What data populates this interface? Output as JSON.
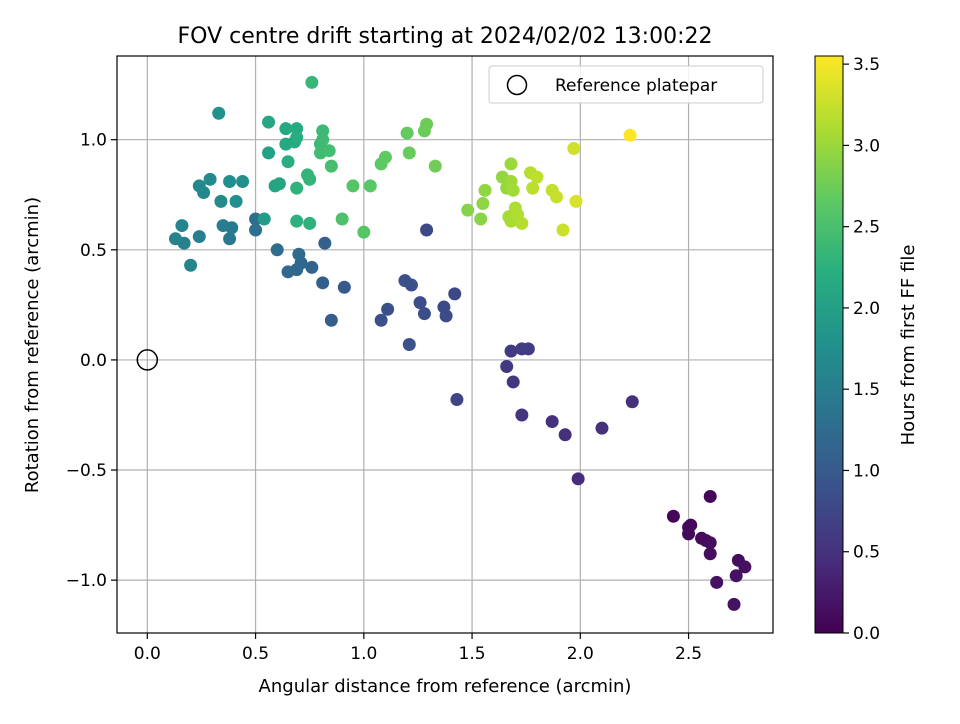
{
  "chart_data": {
    "type": "scatter",
    "title": "FOV centre drift starting at 2024/02/02 13:00:22",
    "xlabel": "Angular distance from reference (arcmin)",
    "ylabel": "Rotation from reference (arcmin)",
    "xlim": [
      -0.14,
      2.89
    ],
    "ylim": [
      -1.24,
      1.38
    ],
    "x_ticks": [
      0.0,
      0.5,
      1.0,
      1.5,
      2.0,
      2.5
    ],
    "x_tick_labels": [
      "0.0",
      "0.5",
      "1.0",
      "1.5",
      "2.0",
      "2.5"
    ],
    "y_ticks": [
      -1.0,
      -0.5,
      0.0,
      0.5,
      1.0
    ],
    "y_tick_labels": [
      "−1.0",
      "−0.5",
      "0.0",
      "0.5",
      "1.0"
    ],
    "grid": true,
    "legend": {
      "placement": "top-right",
      "entries": [
        {
          "label": "Reference platepar",
          "marker": "hollow-circle"
        }
      ]
    },
    "reference_point": {
      "name": "Reference platepar",
      "x": 0.0,
      "y": 0.0
    },
    "colorbar": {
      "label": "Hours from first FF file",
      "colormap": "viridis",
      "range": [
        0.0,
        3.55
      ],
      "ticks": [
        0.0,
        0.5,
        1.0,
        1.5,
        2.0,
        2.5,
        3.0,
        3.5
      ],
      "tick_labels": [
        "0.0",
        "0.5",
        "1.0",
        "1.5",
        "2.0",
        "2.5",
        "3.0",
        "3.5"
      ]
    },
    "points": [
      {
        "x": 2.6,
        "y": -0.62,
        "c": 0.05
      },
      {
        "x": 2.43,
        "y": -0.71,
        "c": 0.06
      },
      {
        "x": 2.51,
        "y": -0.75,
        "c": 0.07
      },
      {
        "x": 2.5,
        "y": -0.76,
        "c": 0.08
      },
      {
        "x": 2.5,
        "y": -0.79,
        "c": 0.09
      },
      {
        "x": 2.56,
        "y": -0.81,
        "c": 0.1
      },
      {
        "x": 2.58,
        "y": -0.82,
        "c": 0.11
      },
      {
        "x": 2.6,
        "y": -0.83,
        "c": 0.12
      },
      {
        "x": 2.6,
        "y": -0.88,
        "c": 0.13
      },
      {
        "x": 2.73,
        "y": -0.91,
        "c": 0.14
      },
      {
        "x": 2.76,
        "y": -0.94,
        "c": 0.15
      },
      {
        "x": 2.72,
        "y": -0.98,
        "c": 0.16
      },
      {
        "x": 2.63,
        "y": -1.01,
        "c": 0.17
      },
      {
        "x": 2.71,
        "y": -1.11,
        "c": 0.18
      },
      {
        "x": 1.99,
        "y": -0.54,
        "c": 0.45
      },
      {
        "x": 1.93,
        "y": -0.34,
        "c": 0.48
      },
      {
        "x": 2.1,
        "y": -0.31,
        "c": 0.5
      },
      {
        "x": 2.24,
        "y": -0.19,
        "c": 0.5
      },
      {
        "x": 1.87,
        "y": -0.28,
        "c": 0.52
      },
      {
        "x": 1.73,
        "y": -0.25,
        "c": 0.55
      },
      {
        "x": 1.69,
        "y": -0.1,
        "c": 0.58
      },
      {
        "x": 1.66,
        "y": -0.03,
        "c": 0.6
      },
      {
        "x": 1.68,
        "y": 0.04,
        "c": 0.62
      },
      {
        "x": 1.73,
        "y": 0.05,
        "c": 0.64
      },
      {
        "x": 1.76,
        "y": 0.05,
        "c": 0.65
      },
      {
        "x": 1.43,
        "y": -0.18,
        "c": 0.75
      },
      {
        "x": 1.42,
        "y": 0.3,
        "c": 0.78
      },
      {
        "x": 1.37,
        "y": 0.24,
        "c": 0.8
      },
      {
        "x": 1.38,
        "y": 0.2,
        "c": 0.82
      },
      {
        "x": 1.26,
        "y": 0.26,
        "c": 0.84
      },
      {
        "x": 1.28,
        "y": 0.21,
        "c": 0.85
      },
      {
        "x": 1.22,
        "y": 0.34,
        "c": 0.86
      },
      {
        "x": 1.19,
        "y": 0.36,
        "c": 0.87
      },
      {
        "x": 1.11,
        "y": 0.23,
        "c": 0.88
      },
      {
        "x": 1.08,
        "y": 0.18,
        "c": 0.89
      },
      {
        "x": 1.21,
        "y": 0.07,
        "c": 0.9
      },
      {
        "x": 1.29,
        "y": 0.59,
        "c": 0.8
      },
      {
        "x": 0.91,
        "y": 0.33,
        "c": 1.0
      },
      {
        "x": 0.85,
        "y": 0.18,
        "c": 1.05
      },
      {
        "x": 0.81,
        "y": 0.35,
        "c": 1.08
      },
      {
        "x": 0.82,
        "y": 0.53,
        "c": 1.1
      },
      {
        "x": 0.76,
        "y": 0.42,
        "c": 1.15
      },
      {
        "x": 0.69,
        "y": 0.41,
        "c": 1.18
      },
      {
        "x": 0.71,
        "y": 0.44,
        "c": 1.2
      },
      {
        "x": 0.65,
        "y": 0.4,
        "c": 1.22
      },
      {
        "x": 0.7,
        "y": 0.48,
        "c": 1.25
      },
      {
        "x": 0.6,
        "y": 0.5,
        "c": 1.28
      },
      {
        "x": 0.5,
        "y": 0.59,
        "c": 1.3
      },
      {
        "x": 0.5,
        "y": 0.64,
        "c": 1.32
      },
      {
        "x": 0.38,
        "y": 0.55,
        "c": 1.45
      },
      {
        "x": 0.39,
        "y": 0.6,
        "c": 1.48
      },
      {
        "x": 0.35,
        "y": 0.61,
        "c": 1.5
      },
      {
        "x": 0.24,
        "y": 0.56,
        "c": 1.52
      },
      {
        "x": 0.17,
        "y": 0.53,
        "c": 1.55
      },
      {
        "x": 0.13,
        "y": 0.55,
        "c": 1.58
      },
      {
        "x": 0.16,
        "y": 0.61,
        "c": 1.6
      },
      {
        "x": 0.2,
        "y": 0.43,
        "c": 1.62
      },
      {
        "x": 0.26,
        "y": 0.76,
        "c": 1.65
      },
      {
        "x": 0.24,
        "y": 0.79,
        "c": 1.68
      },
      {
        "x": 0.29,
        "y": 0.82,
        "c": 1.7
      },
      {
        "x": 0.34,
        "y": 0.72,
        "c": 1.72
      },
      {
        "x": 0.41,
        "y": 0.72,
        "c": 1.74
      },
      {
        "x": 0.38,
        "y": 0.81,
        "c": 1.76
      },
      {
        "x": 0.44,
        "y": 0.81,
        "c": 1.78
      },
      {
        "x": 0.33,
        "y": 1.12,
        "c": 1.8
      },
      {
        "x": 0.54,
        "y": 0.64,
        "c": 1.95
      },
      {
        "x": 0.56,
        "y": 0.94,
        "c": 2.05
      },
      {
        "x": 0.59,
        "y": 0.79,
        "c": 2.08
      },
      {
        "x": 0.61,
        "y": 0.8,
        "c": 2.1
      },
      {
        "x": 0.56,
        "y": 1.08,
        "c": 2.12
      },
      {
        "x": 0.64,
        "y": 1.05,
        "c": 2.14
      },
      {
        "x": 0.64,
        "y": 0.98,
        "c": 2.16
      },
      {
        "x": 0.68,
        "y": 0.99,
        "c": 2.18
      },
      {
        "x": 0.69,
        "y": 1.05,
        "c": 2.2
      },
      {
        "x": 0.69,
        "y": 1.01,
        "c": 2.22
      },
      {
        "x": 0.65,
        "y": 0.9,
        "c": 2.24
      },
      {
        "x": 0.69,
        "y": 0.63,
        "c": 2.26
      },
      {
        "x": 0.75,
        "y": 0.62,
        "c": 2.28
      },
      {
        "x": 0.69,
        "y": 0.78,
        "c": 2.3
      },
      {
        "x": 0.75,
        "y": 0.82,
        "c": 2.32
      },
      {
        "x": 0.74,
        "y": 0.84,
        "c": 2.34
      },
      {
        "x": 0.76,
        "y": 1.26,
        "c": 2.36
      },
      {
        "x": 0.8,
        "y": 0.98,
        "c": 2.38
      },
      {
        "x": 0.81,
        "y": 1.04,
        "c": 2.4
      },
      {
        "x": 0.81,
        "y": 1.0,
        "c": 2.42
      },
      {
        "x": 0.8,
        "y": 0.94,
        "c": 2.44
      },
      {
        "x": 0.84,
        "y": 0.95,
        "c": 2.46
      },
      {
        "x": 0.85,
        "y": 0.88,
        "c": 2.48
      },
      {
        "x": 0.9,
        "y": 0.64,
        "c": 2.55
      },
      {
        "x": 0.95,
        "y": 0.79,
        "c": 2.6
      },
      {
        "x": 1.0,
        "y": 0.58,
        "c": 2.62
      },
      {
        "x": 1.03,
        "y": 0.79,
        "c": 2.64
      },
      {
        "x": 1.08,
        "y": 0.89,
        "c": 2.66
      },
      {
        "x": 1.1,
        "y": 0.92,
        "c": 2.68
      },
      {
        "x": 1.2,
        "y": 1.03,
        "c": 2.7
      },
      {
        "x": 1.21,
        "y": 0.94,
        "c": 2.72
      },
      {
        "x": 1.28,
        "y": 1.04,
        "c": 2.74
      },
      {
        "x": 1.29,
        "y": 1.07,
        "c": 2.76
      },
      {
        "x": 1.33,
        "y": 0.88,
        "c": 2.78
      },
      {
        "x": 1.48,
        "y": 0.68,
        "c": 2.9
      },
      {
        "x": 1.54,
        "y": 0.64,
        "c": 2.92
      },
      {
        "x": 1.55,
        "y": 0.71,
        "c": 2.94
      },
      {
        "x": 1.56,
        "y": 0.77,
        "c": 2.96
      },
      {
        "x": 1.64,
        "y": 0.83,
        "c": 2.98
      },
      {
        "x": 1.66,
        "y": 0.78,
        "c": 3.0
      },
      {
        "x": 1.68,
        "y": 0.89,
        "c": 3.02
      },
      {
        "x": 1.68,
        "y": 0.81,
        "c": 3.04
      },
      {
        "x": 1.69,
        "y": 0.77,
        "c": 3.06
      },
      {
        "x": 1.67,
        "y": 0.65,
        "c": 3.08
      },
      {
        "x": 1.68,
        "y": 0.63,
        "c": 3.1
      },
      {
        "x": 1.7,
        "y": 0.69,
        "c": 3.12
      },
      {
        "x": 1.71,
        "y": 0.66,
        "c": 3.14
      },
      {
        "x": 1.73,
        "y": 0.62,
        "c": 3.16
      },
      {
        "x": 1.77,
        "y": 0.85,
        "c": 3.18
      },
      {
        "x": 1.78,
        "y": 0.78,
        "c": 3.2
      },
      {
        "x": 1.8,
        "y": 0.83,
        "c": 3.22
      },
      {
        "x": 1.87,
        "y": 0.77,
        "c": 3.24
      },
      {
        "x": 1.89,
        "y": 0.74,
        "c": 3.26
      },
      {
        "x": 1.92,
        "y": 0.59,
        "c": 3.28
      },
      {
        "x": 1.97,
        "y": 0.96,
        "c": 3.3
      },
      {
        "x": 1.98,
        "y": 0.72,
        "c": 3.35
      },
      {
        "x": 2.23,
        "y": 1.02,
        "c": 3.55
      }
    ]
  }
}
